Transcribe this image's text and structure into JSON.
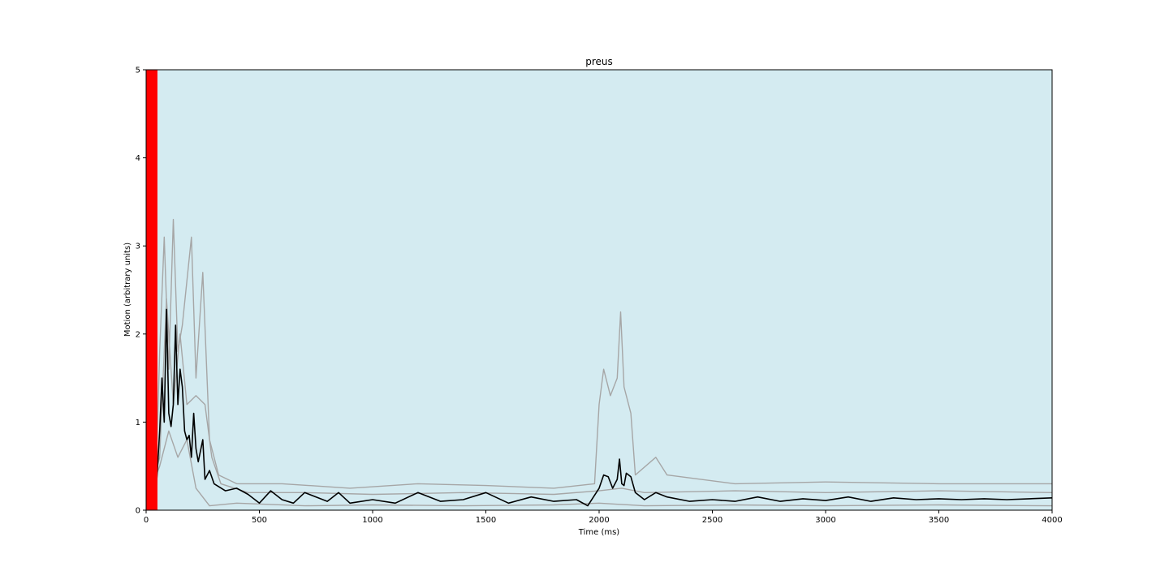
{
  "chart_data": {
    "type": "line",
    "title": "preus",
    "xlabel": "Time (ms)",
    "ylabel": "Motion (arbitrary units)",
    "xlim": [
      0,
      4000
    ],
    "ylim": [
      0,
      5
    ],
    "xticks": [
      0,
      500,
      1000,
      1500,
      2000,
      2500,
      3000,
      3500,
      4000
    ],
    "yticks": [
      0,
      1,
      2,
      3,
      4,
      5
    ],
    "grid": false,
    "background_color": "#d4ebf1",
    "stimulus_span": {
      "x": [
        0,
        50
      ],
      "color": "#ff0000"
    },
    "series": [
      {
        "role": "mean",
        "color": "#000000",
        "points": [
          [
            0,
            0.02
          ],
          [
            20,
            0.08
          ],
          [
            40,
            0.05
          ],
          [
            60,
            0.9
          ],
          [
            70,
            1.5
          ],
          [
            80,
            1.0
          ],
          [
            90,
            2.28
          ],
          [
            100,
            1.1
          ],
          [
            110,
            0.95
          ],
          [
            120,
            1.2
          ],
          [
            130,
            2.1
          ],
          [
            140,
            1.2
          ],
          [
            150,
            1.6
          ],
          [
            160,
            1.4
          ],
          [
            170,
            0.9
          ],
          [
            180,
            0.8
          ],
          [
            190,
            0.85
          ],
          [
            200,
            0.6
          ],
          [
            210,
            1.1
          ],
          [
            220,
            0.7
          ],
          [
            230,
            0.55
          ],
          [
            250,
            0.8
          ],
          [
            260,
            0.35
          ],
          [
            280,
            0.45
          ],
          [
            300,
            0.3
          ],
          [
            350,
            0.22
          ],
          [
            400,
            0.25
          ],
          [
            450,
            0.18
          ],
          [
            500,
            0.08
          ],
          [
            550,
            0.22
          ],
          [
            600,
            0.12
          ],
          [
            650,
            0.08
          ],
          [
            700,
            0.2
          ],
          [
            800,
            0.1
          ],
          [
            850,
            0.2
          ],
          [
            900,
            0.08
          ],
          [
            1000,
            0.12
          ],
          [
            1100,
            0.08
          ],
          [
            1200,
            0.2
          ],
          [
            1300,
            0.1
          ],
          [
            1400,
            0.12
          ],
          [
            1500,
            0.2
          ],
          [
            1600,
            0.08
          ],
          [
            1700,
            0.15
          ],
          [
            1800,
            0.1
          ],
          [
            1900,
            0.12
          ],
          [
            1950,
            0.05
          ],
          [
            2000,
            0.25
          ],
          [
            2020,
            0.4
          ],
          [
            2040,
            0.38
          ],
          [
            2060,
            0.25
          ],
          [
            2080,
            0.35
          ],
          [
            2090,
            0.58
          ],
          [
            2100,
            0.3
          ],
          [
            2110,
            0.28
          ],
          [
            2120,
            0.42
          ],
          [
            2140,
            0.38
          ],
          [
            2160,
            0.2
          ],
          [
            2200,
            0.12
          ],
          [
            2250,
            0.2
          ],
          [
            2300,
            0.15
          ],
          [
            2400,
            0.1
          ],
          [
            2500,
            0.12
          ],
          [
            2600,
            0.1
          ],
          [
            2700,
            0.15
          ],
          [
            2800,
            0.1
          ],
          [
            2900,
            0.13
          ],
          [
            3000,
            0.11
          ],
          [
            3100,
            0.15
          ],
          [
            3200,
            0.1
          ],
          [
            3300,
            0.14
          ],
          [
            3400,
            0.12
          ],
          [
            3500,
            0.13
          ],
          [
            3600,
            0.12
          ],
          [
            3700,
            0.13
          ],
          [
            3800,
            0.12
          ],
          [
            3900,
            0.13
          ],
          [
            4000,
            0.14
          ]
        ]
      },
      {
        "role": "trial",
        "color": "#a6a6a6",
        "points": [
          [
            0,
            0.05
          ],
          [
            40,
            0.1
          ],
          [
            60,
            1.8
          ],
          [
            80,
            3.1
          ],
          [
            100,
            1.6
          ],
          [
            120,
            3.3
          ],
          [
            140,
            1.8
          ],
          [
            160,
            2.1
          ],
          [
            200,
            3.1
          ],
          [
            220,
            1.5
          ],
          [
            250,
            2.7
          ],
          [
            280,
            0.8
          ],
          [
            320,
            0.4
          ],
          [
            400,
            0.3
          ],
          [
            600,
            0.3
          ],
          [
            900,
            0.25
          ],
          [
            1200,
            0.3
          ],
          [
            1500,
            0.28
          ],
          [
            1800,
            0.25
          ],
          [
            1980,
            0.3
          ],
          [
            2000,
            1.2
          ],
          [
            2020,
            1.6
          ],
          [
            2050,
            1.3
          ],
          [
            2080,
            1.5
          ],
          [
            2095,
            2.25
          ],
          [
            2110,
            1.4
          ],
          [
            2140,
            1.1
          ],
          [
            2160,
            0.4
          ],
          [
            2250,
            0.6
          ],
          [
            2300,
            0.4
          ],
          [
            2600,
            0.3
          ],
          [
            3000,
            0.32
          ],
          [
            3500,
            0.3
          ],
          [
            4000,
            0.3
          ]
        ]
      },
      {
        "role": "trial",
        "color": "#a6a6a6",
        "points": [
          [
            0,
            0.02
          ],
          [
            60,
            0.6
          ],
          [
            90,
            2.4
          ],
          [
            120,
            1.2
          ],
          [
            150,
            2.0
          ],
          [
            180,
            1.2
          ],
          [
            220,
            1.3
          ],
          [
            260,
            1.2
          ],
          [
            290,
            0.6
          ],
          [
            330,
            0.3
          ],
          [
            450,
            0.2
          ],
          [
            700,
            0.2
          ],
          [
            1000,
            0.18
          ],
          [
            1400,
            0.2
          ],
          [
            1800,
            0.18
          ],
          [
            2000,
            0.22
          ],
          [
            2100,
            0.25
          ],
          [
            2200,
            0.2
          ],
          [
            2600,
            0.22
          ],
          [
            3000,
            0.2
          ],
          [
            3500,
            0.22
          ],
          [
            4000,
            0.2
          ]
        ]
      },
      {
        "role": "trial",
        "color": "#a6a6a6",
        "points": [
          [
            0,
            0.1
          ],
          [
            60,
            0.5
          ],
          [
            100,
            0.9
          ],
          [
            140,
            0.6
          ],
          [
            180,
            0.8
          ],
          [
            220,
            0.25
          ],
          [
            280,
            0.05
          ],
          [
            400,
            0.08
          ],
          [
            700,
            0.05
          ],
          [
            1000,
            0.06
          ],
          [
            1400,
            0.05
          ],
          [
            1800,
            0.06
          ],
          [
            2000,
            0.08
          ],
          [
            2200,
            0.05
          ],
          [
            2600,
            0.06
          ],
          [
            3000,
            0.05
          ],
          [
            3500,
            0.06
          ],
          [
            4000,
            0.05
          ]
        ]
      }
    ]
  }
}
